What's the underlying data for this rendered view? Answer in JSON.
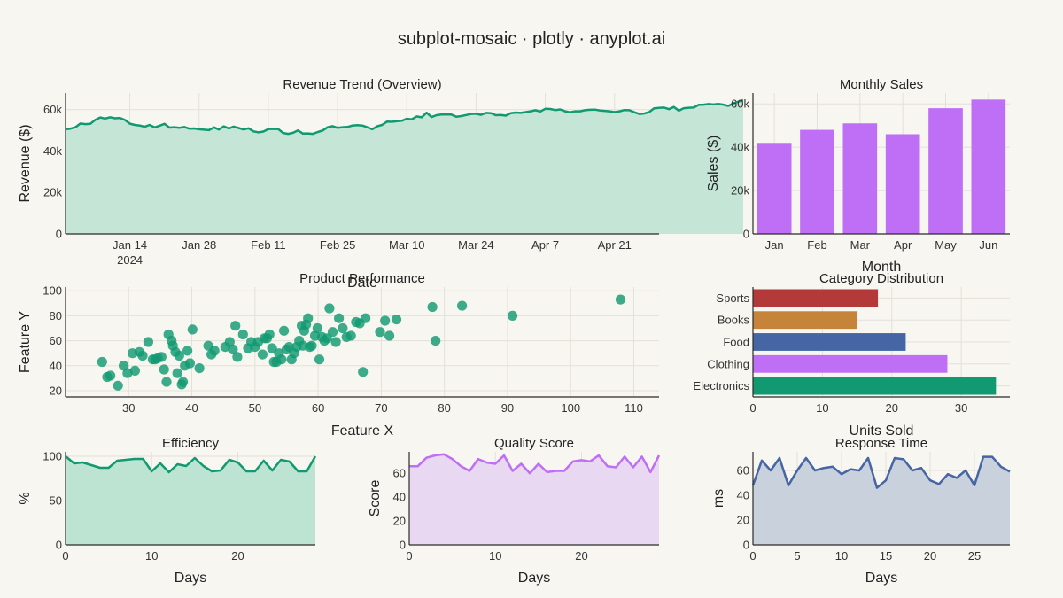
{
  "page": {
    "title": "subplot-mosaic · plotly · anyplot.ai",
    "background": "#f8f6f0"
  },
  "chart_data": [
    {
      "id": "revenue",
      "type": "area",
      "title": "Revenue Trend (Overview)",
      "xlabel": "Date",
      "ylabel": "Revenue ($)",
      "xlim": [
        "2024-01-01",
        "2024-04-30"
      ],
      "ylim": [
        0,
        68000
      ],
      "x_start": "2024-01-01",
      "x_step_days": 1,
      "yticks": [
        0,
        20000,
        40000,
        60000
      ],
      "ytick_labels": [
        "0",
        "20k",
        "40k",
        "60k"
      ],
      "xticks": [
        "2024-01-14",
        "2024-01-28",
        "2024-02-11",
        "2024-02-25",
        "2024-03-10",
        "2024-03-24",
        "2024-04-07",
        "2024-04-21"
      ],
      "xtick_labels": [
        "Jan 14",
        "Jan 28",
        "Feb 11",
        "Feb 25",
        "Mar 10",
        "Mar 24",
        "Apr 7",
        "Apr 21"
      ],
      "xtick_year": "2024",
      "color": "#119a71",
      "fill": "#c5e5d7",
      "grid": true,
      "values": [
        50500,
        50800,
        51500,
        53300,
        53000,
        53100,
        55000,
        56200,
        55700,
        56300,
        55800,
        56000,
        55000,
        53200,
        52600,
        52300,
        51700,
        52600,
        51400,
        52200,
        53100,
        51300,
        51500,
        51200,
        51600,
        50800,
        50900,
        50500,
        50300,
        50100,
        51400,
        50400,
        51900,
        50900,
        51800,
        51100,
        50400,
        51000,
        49500,
        49000,
        49400,
        50600,
        50700,
        50600,
        48700,
        48300,
        48800,
        49900,
        48400,
        48500,
        48300,
        49200,
        49900,
        51500,
        52000,
        51200,
        51500,
        51600,
        52300,
        52500,
        52300,
        51500,
        50500,
        51900,
        52600,
        54200,
        54100,
        54400,
        54600,
        55600,
        55300,
        56700,
        56300,
        58500,
        56400,
        57300,
        57600,
        57600,
        57600,
        56600,
        56900,
        57400,
        57900,
        58000,
        57500,
        58400,
        58300,
        57300,
        57400,
        57100,
        58300,
        58600,
        58400,
        58800,
        59200,
        59700,
        59100,
        60400,
        60300,
        59800,
        60100,
        59200,
        58700,
        59200,
        59200,
        59700,
        59900,
        60000,
        59600,
        59400,
        59200,
        58800,
        59200,
        59800,
        59700,
        58700,
        57900,
        58100,
        58800,
        60600,
        60800,
        61000,
        60200,
        61300,
        59500,
        60700,
        60900,
        61000,
        62300,
        62400,
        62700,
        62500,
        62800,
        62400,
        61800,
        63000,
        63800,
        64600
      ]
    },
    {
      "id": "monthly",
      "type": "bar",
      "title": "Monthly Sales",
      "xlabel": "Month",
      "ylabel": "Sales ($)",
      "categories": [
        "Jan",
        "Feb",
        "Mar",
        "Apr",
        "May",
        "Jun"
      ],
      "values": [
        42000,
        48000,
        51000,
        46000,
        58000,
        62000
      ],
      "ylim": [
        0,
        65000
      ],
      "yticks": [
        0,
        20000,
        40000,
        60000
      ],
      "ytick_labels": [
        "0",
        "20k",
        "40k",
        "60k"
      ],
      "color": "#bf6ef6",
      "grid": true
    },
    {
      "id": "product",
      "type": "scatter",
      "title": "Product Performance",
      "xlabel": "Feature X",
      "ylabel": "Feature Y",
      "xlim": [
        20,
        114
      ],
      "ylim": [
        15,
        103
      ],
      "xticks": [
        30,
        40,
        50,
        60,
        70,
        80,
        90,
        100,
        110
      ],
      "yticks": [
        20,
        40,
        60,
        80,
        100
      ],
      "color": "#119a71",
      "grid": true,
      "x": [
        25.8,
        26.6,
        27.1,
        28.3,
        29.2,
        29.8,
        30.6,
        31.0,
        31.7,
        32.2,
        33.1,
        33.8,
        34.2,
        34.6,
        35.2,
        35.6,
        36.0,
        36.3,
        36.8,
        37.0,
        37.4,
        37.7,
        38.0,
        38.4,
        38.6,
        38.9,
        39.3,
        39.7,
        40.1,
        41.2,
        42.6,
        43.1,
        43.6,
        45.3,
        46.0,
        46.5,
        46.9,
        47.2,
        48.1,
        48.9,
        49.4,
        50.0,
        50.5,
        51.2,
        51.5,
        51.9,
        52.3,
        52.7,
        53.0,
        53.4,
        53.8,
        54.2,
        54.6,
        55.0,
        55.4,
        55.8,
        56.2,
        56.6,
        57.0,
        57.4,
        57.6,
        57.8,
        58.1,
        58.4,
        58.7,
        59.0,
        59.5,
        59.9,
        60.2,
        60.6,
        61.0,
        61.4,
        61.8,
        62.3,
        62.8,
        63.3,
        63.9,
        64.5,
        65.2,
        66.0,
        66.6,
        67.1,
        67.5,
        69.8,
        70.6,
        71.3,
        72.4,
        78.1,
        78.6,
        82.8,
        90.8,
        107.9
      ],
      "y": [
        43,
        31,
        32,
        24,
        40,
        34,
        50,
        36,
        51,
        48,
        59,
        45,
        45,
        46,
        47,
        37,
        27,
        65,
        60,
        56,
        51,
        34,
        48,
        25,
        27,
        40,
        52,
        42,
        69,
        38,
        56,
        49,
        52,
        55,
        59,
        53,
        72,
        47,
        65,
        54,
        59,
        55,
        59,
        49,
        62,
        62,
        65,
        54,
        43,
        43,
        50,
        45,
        68,
        53,
        55,
        45,
        50,
        55,
        60,
        72,
        56,
        68,
        73,
        78,
        55,
        56,
        64,
        70,
        45,
        63,
        60,
        62,
        86,
        67,
        59,
        78,
        70,
        63,
        64,
        75,
        74,
        35,
        78,
        67,
        76,
        64,
        77,
        87,
        60,
        88,
        80,
        93
      ]
    },
    {
      "id": "category",
      "type": "bar",
      "orientation": "horizontal",
      "title": "Category Distribution",
      "xlabel": "Units Sold",
      "categories": [
        "Sports",
        "Books",
        "Food",
        "Clothing",
        "Electronics"
      ],
      "values": [
        18,
        15,
        22,
        28,
        35
      ],
      "colors": [
        "#b43a3a",
        "#c5843a",
        "#4565a5",
        "#bf6ef6",
        "#119a71"
      ],
      "xlim": [
        0,
        37
      ],
      "xticks": [
        0,
        10,
        20,
        30
      ],
      "grid": true
    },
    {
      "id": "efficiency",
      "type": "area",
      "title": "Efficiency",
      "xlabel": "Days",
      "ylabel": "%",
      "xlim": [
        0,
        29
      ],
      "ylim": [
        0,
        105
      ],
      "xticks": [
        0,
        10,
        20
      ],
      "yticks": [
        0,
        50,
        100
      ],
      "color": "#119a71",
      "fill": "#bde4d2",
      "grid": true,
      "values": [
        100,
        92,
        93,
        90,
        87,
        87,
        95,
        96,
        97,
        97,
        83,
        92,
        82,
        91,
        89,
        98,
        89,
        83,
        84,
        96,
        93,
        83,
        83,
        95,
        84,
        96,
        94,
        83,
        83,
        100
      ]
    },
    {
      "id": "quality",
      "type": "area",
      "title": "Quality Score",
      "xlabel": "Days",
      "ylabel": "Score",
      "xlim": [
        0,
        29
      ],
      "ylim": [
        0,
        78
      ],
      "xticks": [
        0,
        10,
        20
      ],
      "yticks": [
        0,
        20,
        40,
        60
      ],
      "color": "#bf6ef6",
      "fill": "#e9d8f1",
      "grid": true,
      "values": [
        66,
        66,
        73,
        75,
        76,
        72,
        66,
        62,
        72,
        69,
        68,
        75,
        62,
        68,
        60,
        68,
        61,
        62,
        62,
        70,
        71,
        70,
        75,
        66,
        65,
        74,
        65,
        74,
        61,
        75
      ]
    },
    {
      "id": "response",
      "type": "area",
      "title": "Response Time",
      "xlabel": "Days",
      "ylabel": "ms",
      "xlim": [
        0,
        29
      ],
      "ylim": [
        0,
        75
      ],
      "xticks": [
        0,
        5,
        10,
        15,
        20,
        25
      ],
      "yticks": [
        0,
        20,
        40,
        60
      ],
      "color": "#4565a5",
      "fill": "#c8d1dc",
      "grid": true,
      "values": [
        48,
        68,
        60,
        70,
        48,
        60,
        70,
        60,
        62,
        63,
        57,
        61,
        60,
        70,
        46,
        52,
        70,
        69,
        60,
        62,
        52,
        49,
        57,
        54,
        60,
        48,
        71,
        71,
        63,
        59
      ]
    }
  ]
}
